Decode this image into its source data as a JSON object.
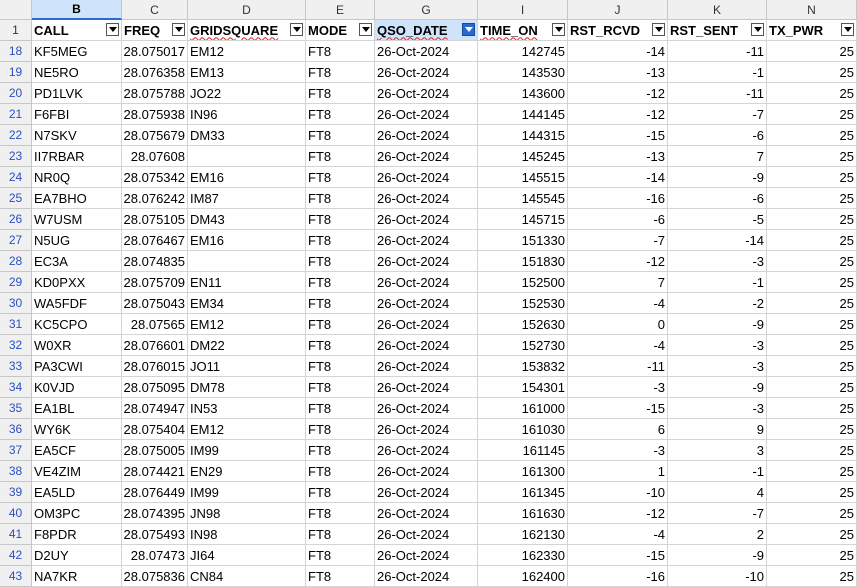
{
  "column_letters": [
    "B",
    "C",
    "D",
    "E",
    "G",
    "I",
    "J",
    "K",
    "N"
  ],
  "header_row_number": "1",
  "headers": [
    "CALL",
    "FREQ",
    "GRIDSQUARE",
    "MODE",
    "QSO_DATE",
    "TIME_ON",
    "RST_RCVD",
    "RST_SENT",
    "TX_PWR"
  ],
  "rows": [
    {
      "n": "18",
      "call": "KF5MEG",
      "freq": "28.075017",
      "grid": "EM12",
      "mode": "FT8",
      "date": "26-Oct-2024",
      "time": "142745",
      "rcvd": "-14",
      "sent": "-11",
      "pwr": "25"
    },
    {
      "n": "19",
      "call": "NE5RO",
      "freq": "28.076358",
      "grid": "EM13",
      "mode": "FT8",
      "date": "26-Oct-2024",
      "time": "143530",
      "rcvd": "-13",
      "sent": "-1",
      "pwr": "25"
    },
    {
      "n": "20",
      "call": "PD1LVK",
      "freq": "28.075788",
      "grid": "JO22",
      "mode": "FT8",
      "date": "26-Oct-2024",
      "time": "143600",
      "rcvd": "-12",
      "sent": "-11",
      "pwr": "25"
    },
    {
      "n": "21",
      "call": "F6FBI",
      "freq": "28.075938",
      "grid": "IN96",
      "mode": "FT8",
      "date": "26-Oct-2024",
      "time": "144145",
      "rcvd": "-12",
      "sent": "-7",
      "pwr": "25"
    },
    {
      "n": "22",
      "call": "N7SKV",
      "freq": "28.075679",
      "grid": "DM33",
      "mode": "FT8",
      "date": "26-Oct-2024",
      "time": "144315",
      "rcvd": "-15",
      "sent": "-6",
      "pwr": "25"
    },
    {
      "n": "23",
      "call": "II7RBAR",
      "freq": "28.07608",
      "grid": "",
      "mode": "FT8",
      "date": "26-Oct-2024",
      "time": "145245",
      "rcvd": "-13",
      "sent": "7",
      "pwr": "25"
    },
    {
      "n": "24",
      "call": "NR0Q",
      "freq": "28.075342",
      "grid": "EM16",
      "mode": "FT8",
      "date": "26-Oct-2024",
      "time": "145515",
      "rcvd": "-14",
      "sent": "-9",
      "pwr": "25"
    },
    {
      "n": "25",
      "call": "EA7BHO",
      "freq": "28.076242",
      "grid": "IM87",
      "mode": "FT8",
      "date": "26-Oct-2024",
      "time": "145545",
      "rcvd": "-16",
      "sent": "-6",
      "pwr": "25"
    },
    {
      "n": "26",
      "call": "W7USM",
      "freq": "28.075105",
      "grid": "DM43",
      "mode": "FT8",
      "date": "26-Oct-2024",
      "time": "145715",
      "rcvd": "-6",
      "sent": "-5",
      "pwr": "25"
    },
    {
      "n": "27",
      "call": "N5UG",
      "freq": "28.076467",
      "grid": "EM16",
      "mode": "FT8",
      "date": "26-Oct-2024",
      "time": "151330",
      "rcvd": "-7",
      "sent": "-14",
      "pwr": "25"
    },
    {
      "n": "28",
      "call": "EC3A",
      "freq": "28.074835",
      "grid": "",
      "mode": "FT8",
      "date": "26-Oct-2024",
      "time": "151830",
      "rcvd": "-12",
      "sent": "-3",
      "pwr": "25"
    },
    {
      "n": "29",
      "call": "KD0PXX",
      "freq": "28.075709",
      "grid": "EN11",
      "mode": "FT8",
      "date": "26-Oct-2024",
      "time": "152500",
      "rcvd": "7",
      "sent": "-1",
      "pwr": "25"
    },
    {
      "n": "30",
      "call": "WA5FDF",
      "freq": "28.075043",
      "grid": "EM34",
      "mode": "FT8",
      "date": "26-Oct-2024",
      "time": "152530",
      "rcvd": "-4",
      "sent": "-2",
      "pwr": "25"
    },
    {
      "n": "31",
      "call": "KC5CPO",
      "freq": "28.07565",
      "grid": "EM12",
      "mode": "FT8",
      "date": "26-Oct-2024",
      "time": "152630",
      "rcvd": "0",
      "sent": "-9",
      "pwr": "25"
    },
    {
      "n": "32",
      "call": "W0XR",
      "freq": "28.076601",
      "grid": "DM22",
      "mode": "FT8",
      "date": "26-Oct-2024",
      "time": "152730",
      "rcvd": "-4",
      "sent": "-3",
      "pwr": "25"
    },
    {
      "n": "33",
      "call": "PA3CWI",
      "freq": "28.076015",
      "grid": "JO11",
      "mode": "FT8",
      "date": "26-Oct-2024",
      "time": "153832",
      "rcvd": "-11",
      "sent": "-3",
      "pwr": "25"
    },
    {
      "n": "34",
      "call": "K0VJD",
      "freq": "28.075095",
      "grid": "DM78",
      "mode": "FT8",
      "date": "26-Oct-2024",
      "time": "154301",
      "rcvd": "-3",
      "sent": "-9",
      "pwr": "25"
    },
    {
      "n": "35",
      "call": "EA1BL",
      "freq": "28.074947",
      "grid": "IN53",
      "mode": "FT8",
      "date": "26-Oct-2024",
      "time": "161000",
      "rcvd": "-15",
      "sent": "-3",
      "pwr": "25"
    },
    {
      "n": "36",
      "call": "WY6K",
      "freq": "28.075404",
      "grid": "EM12",
      "mode": "FT8",
      "date": "26-Oct-2024",
      "time": "161030",
      "rcvd": "6",
      "sent": "9",
      "pwr": "25"
    },
    {
      "n": "37",
      "call": "EA5CF",
      "freq": "28.075005",
      "grid": "IM99",
      "mode": "FT8",
      "date": "26-Oct-2024",
      "time": "161145",
      "rcvd": "-3",
      "sent": "3",
      "pwr": "25"
    },
    {
      "n": "38",
      "call": "VE4ZIM",
      "freq": "28.074421",
      "grid": "EN29",
      "mode": "FT8",
      "date": "26-Oct-2024",
      "time": "161300",
      "rcvd": "1",
      "sent": "-1",
      "pwr": "25"
    },
    {
      "n": "39",
      "call": "EA5LD",
      "freq": "28.076449",
      "grid": "IM99",
      "mode": "FT8",
      "date": "26-Oct-2024",
      "time": "161345",
      "rcvd": "-10",
      "sent": "4",
      "pwr": "25"
    },
    {
      "n": "40",
      "call": "OM3PC",
      "freq": "28.074395",
      "grid": "JN98",
      "mode": "FT8",
      "date": "26-Oct-2024",
      "time": "161630",
      "rcvd": "-12",
      "sent": "-7",
      "pwr": "25"
    },
    {
      "n": "41",
      "call": "F8PDR",
      "freq": "28.075493",
      "grid": "IN98",
      "mode": "FT8",
      "date": "26-Oct-2024",
      "time": "162130",
      "rcvd": "-4",
      "sent": "2",
      "pwr": "25"
    },
    {
      "n": "42",
      "call": "D2UY",
      "freq": "28.07473",
      "grid": "JI64",
      "mode": "FT8",
      "date": "26-Oct-2024",
      "time": "162330",
      "rcvd": "-15",
      "sent": "-9",
      "pwr": "25"
    },
    {
      "n": "43",
      "call": "NA7KR",
      "freq": "28.075836",
      "grid": "CN84",
      "mode": "FT8",
      "date": "26-Oct-2024",
      "time": "162400",
      "rcvd": "-16",
      "sent": "-10",
      "pwr": "25"
    }
  ],
  "colors": {
    "header_bg": "#f0f0f0",
    "selected_header_bg": "#cfe3fb",
    "row_number": "#2a4fc4",
    "active_filter": "#2a6ad0",
    "spell_underline": "#e02020"
  },
  "icons": {
    "filter": "dropdown-arrow-icon",
    "active_filter": "active-filter-icon"
  }
}
